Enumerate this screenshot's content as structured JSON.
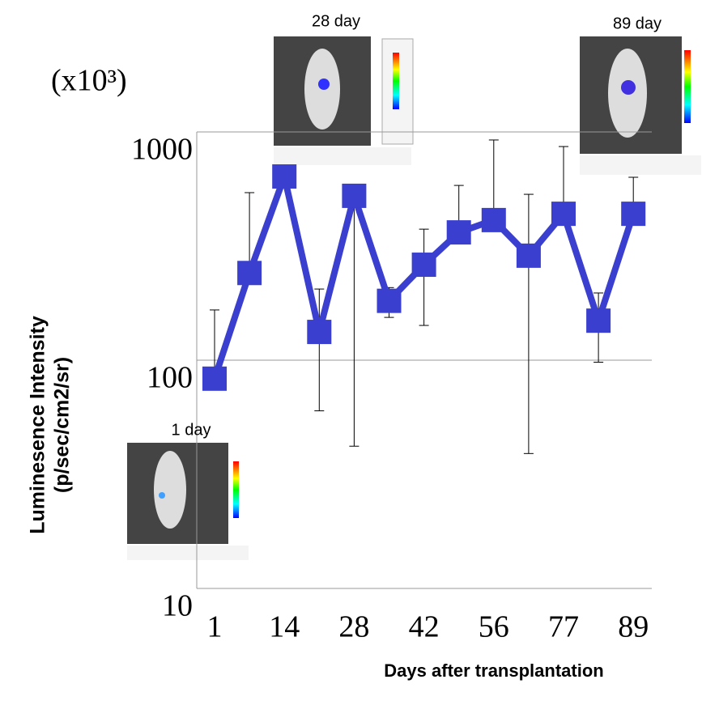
{
  "chart_data": {
    "type": "line",
    "y_unit": "(x10³)",
    "ylabel": [
      "Luminesence Intensity",
      "(p/sec/cm2/sr)"
    ],
    "xlabel": "Days after transplantation",
    "annotations": [
      "1 day",
      "28 day",
      "89 day"
    ],
    "categories": [
      "1",
      null,
      "14",
      null,
      "28",
      null,
      "42",
      null,
      "56",
      null,
      "77",
      null,
      "89"
    ],
    "series": [
      {
        "color": "#3a3fcf",
        "values": [
          83,
          241,
          638,
          133,
          525,
          182,
          262,
          363,
          411,
          287,
          438,
          149,
          438
        ],
        "error_high": [
          166,
          542,
          null,
          205,
          null,
          208,
          375,
          583,
          922,
          533,
          863,
          197,
          633
        ],
        "error_low": [
          null,
          null,
          null,
          60,
          42,
          154,
          142,
          null,
          null,
          39,
          null,
          98,
          null
        ]
      }
    ],
    "ylim": [
      10,
      1000
    ],
    "yticks": [
      10,
      100,
      1000
    ],
    "log_y": true,
    "grid": true
  }
}
